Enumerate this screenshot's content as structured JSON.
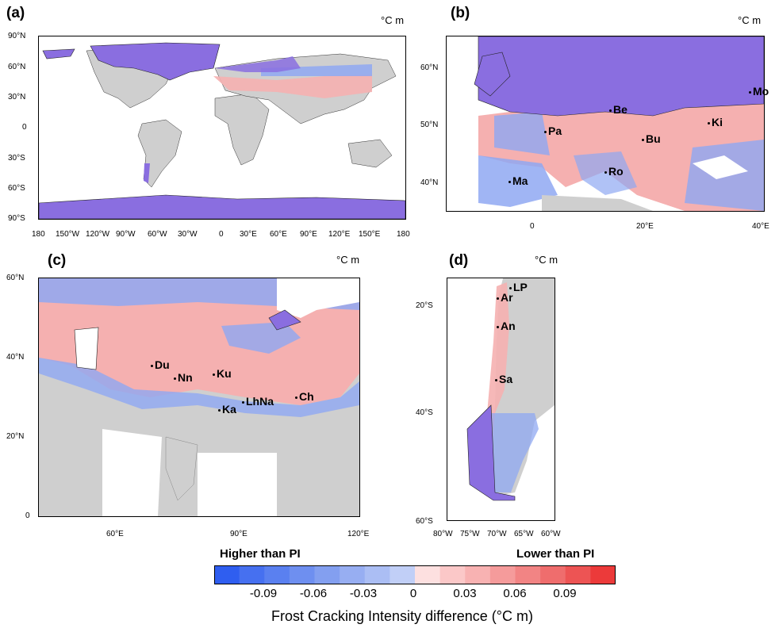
{
  "panels": {
    "a": {
      "label": "(a)",
      "unit": "°C m",
      "lat_ticks": [
        "90°N",
        "60°N",
        "30°N",
        "0",
        "30°S",
        "60°S",
        "90°S"
      ],
      "lon_ticks": [
        "180",
        "150°W",
        "120°W",
        "90°W",
        "60°W",
        "30°W",
        "0",
        "30°E",
        "60°E",
        "90°E",
        "120°E",
        "150°E",
        "180"
      ]
    },
    "b": {
      "label": "(b)",
      "unit": "°C m",
      "lat_ticks": [
        "60°N",
        "50°N",
        "40°N"
      ],
      "lon_ticks": [
        "0",
        "20°E",
        "40°E"
      ],
      "cities": [
        {
          "name": "Be",
          "lon": 13.4,
          "lat": 52.5
        },
        {
          "name": "Pa",
          "lon": 2.3,
          "lat": 48.9
        },
        {
          "name": "Ki",
          "lon": 30.5,
          "lat": 50.4
        },
        {
          "name": "Mo",
          "lon": 37.6,
          "lat": 55.8
        },
        {
          "name": "Bu",
          "lon": 19.0,
          "lat": 47.5
        },
        {
          "name": "Ma",
          "lon": -3.7,
          "lat": 40.4
        },
        {
          "name": "Ro",
          "lon": 12.5,
          "lat": 41.9
        }
      ]
    },
    "c": {
      "label": "(c)",
      "unit": "°C m",
      "lat_ticks": [
        "60°N",
        "40°N",
        "20°N",
        "0"
      ],
      "lon_ticks": [
        "60°E",
        "90°E",
        "120°E"
      ],
      "cities": [
        {
          "name": "Du",
          "lon": 68.8,
          "lat": 38.6
        },
        {
          "name": "Nn",
          "lon": 74.0,
          "lat": 35.5
        },
        {
          "name": "Ku",
          "lon": 84.0,
          "lat": 36.0
        },
        {
          "name": "Ka",
          "lon": 85.3,
          "lat": 27.7
        },
        {
          "name": "LhNa",
          "lon": 91.0,
          "lat": 29.7
        },
        {
          "name": "Ch",
          "lon": 104.0,
          "lat": 30.7
        }
      ]
    },
    "d": {
      "label": "(d)",
      "unit": "°C m",
      "lat_ticks": [
        "20°S",
        "40°S",
        "60°S"
      ],
      "lon_ticks": [
        "80°W",
        "75°W",
        "70°W",
        "65°W",
        "60°W"
      ],
      "cities": [
        {
          "name": "LP",
          "lon": -68.1,
          "lat": -16.5
        },
        {
          "name": "Ar",
          "lon": -71.5,
          "lat": -18.5
        },
        {
          "name": "An",
          "lon": -70.4,
          "lat": -23.6
        },
        {
          "name": "Sa",
          "lon": -70.6,
          "lat": -33.4
        }
      ]
    }
  },
  "colorbar": {
    "left_title": "Higher than PI",
    "right_title": "Lower than PI",
    "tick_labels": [
      "-0.09",
      "-0.06",
      "-0.03",
      "0",
      "0.03",
      "0.06",
      "0.09"
    ],
    "title": "Frost Cracking Intensity difference (°C m)",
    "colors": [
      "#2f5ef0",
      "#4670f0",
      "#5a80f0",
      "#6e8ff0",
      "#839ff0",
      "#97aef2",
      "#abbef4",
      "#c1cff7",
      "#fde0e0",
      "#fbc8c8",
      "#f8b2b2",
      "#f59b9b",
      "#f28484",
      "#ef6d6d",
      "#ed5454",
      "#ec3a3a"
    ]
  },
  "map_colors": {
    "land": "#cfcfcf",
    "ice": "#8a6ee0",
    "ocean": "#ffffff",
    "blue": "#8fa8f2",
    "red": "#f5b0b0"
  }
}
